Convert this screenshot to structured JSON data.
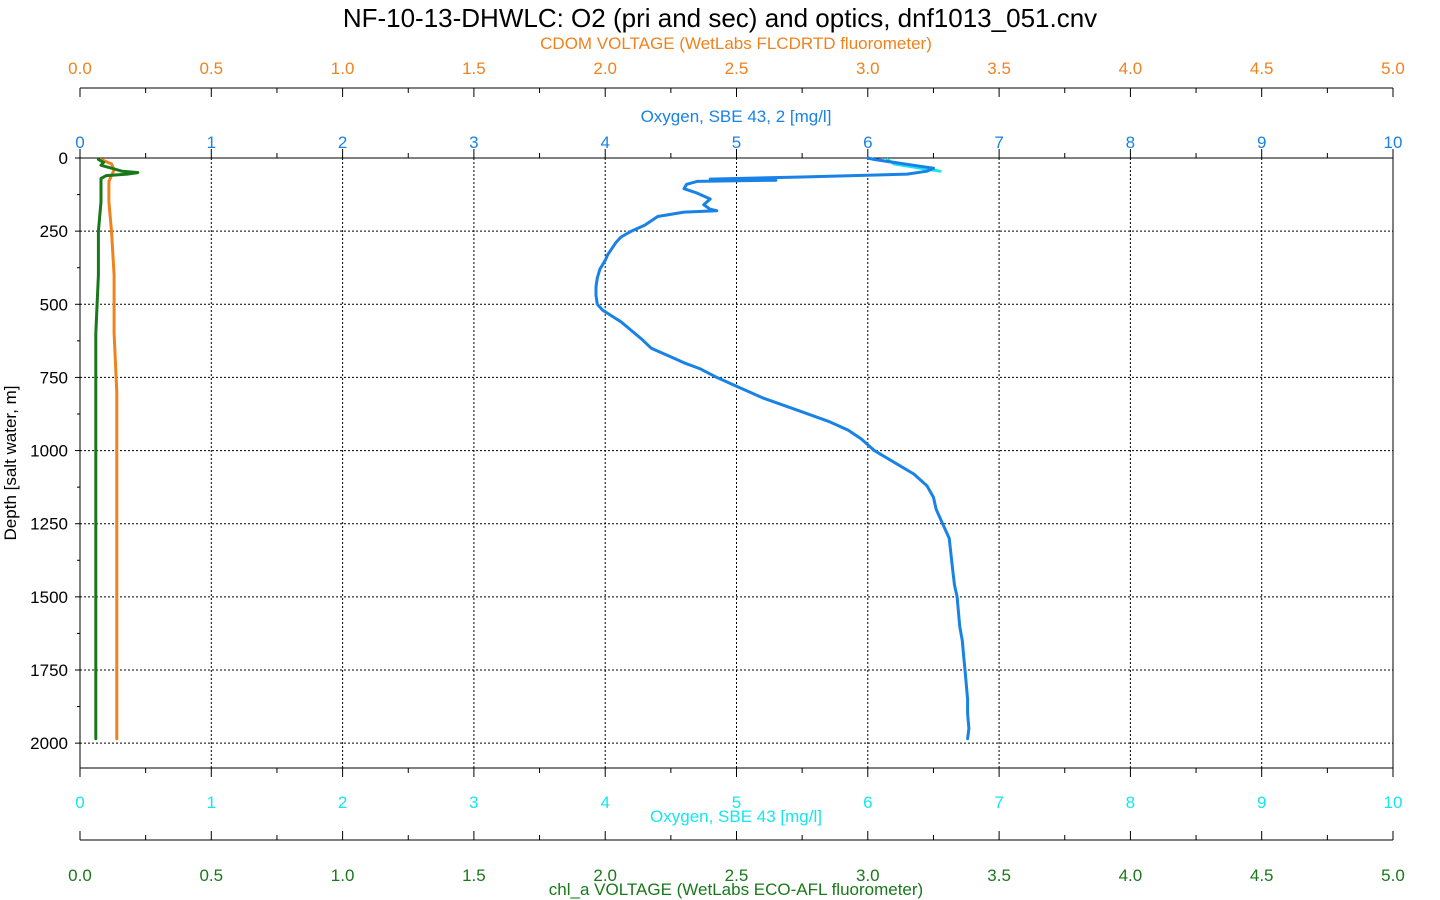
{
  "chart_data": {
    "type": "line",
    "title": "NF-10-13-DHWLC: O2 (pri and sec) and optics, dnf1013_051.cnv",
    "colors": {
      "cdom": "#f0821e",
      "oxygen2": "#1982e6",
      "oxygen": "#14e6f0",
      "chl": "#197819"
    },
    "y_axis": {
      "label": "Depth [salt water, m]",
      "range": [
        2085,
        0
      ],
      "ticks": [
        0,
        250,
        500,
        750,
        1000,
        1250,
        1500,
        1750,
        2000
      ],
      "tick_labels": [
        "0",
        "250",
        "500",
        "750",
        "1000",
        "1250",
        "1500",
        "1750",
        "2000"
      ],
      "grid": true
    },
    "x_axes": [
      {
        "id": "cdom",
        "label": "CDOM VOLTAGE (WetLabs FLCDRTD fluorometer)",
        "position": "top-outer",
        "range": [
          0,
          5
        ],
        "ticks": [
          0,
          0.5,
          1,
          1.5,
          2,
          2.5,
          3,
          3.5,
          4,
          4.5,
          5
        ],
        "tick_labels": [
          "0.0",
          "0.5",
          "1.0",
          "1.5",
          "2.0",
          "2.5",
          "3.0",
          "3.5",
          "4.0",
          "4.5",
          "5.0"
        ]
      },
      {
        "id": "oxygen2",
        "label": "Oxygen, SBE 43, 2 [mg/l]",
        "position": "top-inner",
        "range": [
          0,
          10
        ],
        "ticks": [
          0,
          1,
          2,
          3,
          4,
          5,
          6,
          7,
          8,
          9,
          10
        ],
        "tick_labels": [
          "0",
          "1",
          "2",
          "3",
          "4",
          "5",
          "6",
          "7",
          "8",
          "9",
          "10"
        ]
      },
      {
        "id": "oxygen",
        "label": "Oxygen, SBE 43 [mg/l]",
        "position": "bottom-inner",
        "range": [
          0,
          10
        ],
        "ticks": [
          0,
          1,
          2,
          3,
          4,
          5,
          6,
          7,
          8,
          9,
          10
        ],
        "tick_labels": [
          "0",
          "1",
          "2",
          "3",
          "4",
          "5",
          "6",
          "7",
          "8",
          "9",
          "10"
        ]
      },
      {
        "id": "chl",
        "label": "chl_a VOLTAGE (WetLabs ECO-AFL fluorometer)",
        "position": "bottom-outer",
        "range": [
          0,
          5
        ],
        "ticks": [
          0,
          0.5,
          1,
          1.5,
          2,
          2.5,
          3,
          3.5,
          4,
          4.5,
          5
        ],
        "tick_labels": [
          "0.0",
          "0.5",
          "1.0",
          "1.5",
          "2.0",
          "2.5",
          "3.0",
          "3.5",
          "4.0",
          "4.5",
          "5.0"
        ]
      }
    ],
    "series": [
      {
        "axis": "oxygen",
        "depth": [
          5,
          20,
          35,
          38,
          45
        ],
        "values": [
          6.15,
          6.2,
          6.4,
          6.45,
          6.55
        ]
      },
      {
        "axis": "oxygen2",
        "depth": [
          0,
          5,
          15,
          25,
          35,
          45,
          55,
          65,
          72,
          76,
          80,
          90,
          105,
          120,
          140,
          160,
          175,
          180,
          185,
          200,
          215,
          230,
          250,
          270,
          290,
          310,
          330,
          350,
          380,
          410,
          440,
          470,
          500,
          520,
          540,
          560,
          590,
          620,
          650,
          680,
          700,
          720,
          750,
          780,
          820,
          860,
          900,
          930,
          960,
          1000,
          1040,
          1080,
          1120,
          1160,
          1200,
          1250,
          1300,
          1340,
          1380,
          1420,
          1460,
          1500,
          1550,
          1600,
          1650,
          1700,
          1750,
          1800,
          1850,
          1900,
          1950,
          1985
        ],
        "values": [
          6.0,
          6.05,
          6.2,
          6.35,
          6.5,
          6.45,
          6.3,
          5.5,
          4.8,
          5.3,
          4.7,
          4.62,
          4.6,
          4.7,
          4.8,
          4.75,
          4.8,
          4.85,
          4.6,
          4.4,
          4.35,
          4.3,
          4.2,
          4.12,
          4.08,
          4.05,
          4.02,
          4.0,
          3.96,
          3.94,
          3.93,
          3.93,
          3.94,
          3.98,
          4.05,
          4.12,
          4.2,
          4.28,
          4.35,
          4.5,
          4.6,
          4.72,
          4.85,
          5.0,
          5.2,
          5.45,
          5.7,
          5.85,
          5.95,
          6.05,
          6.2,
          6.35,
          6.45,
          6.5,
          6.52,
          6.57,
          6.62,
          6.63,
          6.64,
          6.65,
          6.66,
          6.68,
          6.69,
          6.7,
          6.72,
          6.73,
          6.74,
          6.75,
          6.76,
          6.76,
          6.77,
          6.76
        ]
      },
      {
        "axis": "cdom",
        "depth": [
          5,
          20,
          40,
          60,
          80,
          100,
          150,
          250,
          400,
          600,
          800,
          1000,
          1200,
          1400,
          1600,
          1800,
          1985
        ],
        "values": [
          0.08,
          0.12,
          0.13,
          0.12,
          0.11,
          0.11,
          0.11,
          0.12,
          0.13,
          0.13,
          0.14,
          0.14,
          0.14,
          0.14,
          0.14,
          0.14,
          0.14
        ]
      },
      {
        "axis": "chl",
        "depth": [
          5,
          15,
          25,
          35,
          45,
          50,
          55,
          60,
          70,
          80,
          90,
          100,
          150,
          250,
          400,
          600,
          800,
          1000,
          1200,
          1400,
          1600,
          1800,
          1985
        ],
        "values": [
          0.07,
          0.09,
          0.08,
          0.12,
          0.16,
          0.22,
          0.18,
          0.1,
          0.08,
          0.08,
          0.08,
          0.08,
          0.08,
          0.07,
          0.07,
          0.06,
          0.06,
          0.06,
          0.06,
          0.06,
          0.06,
          0.06,
          0.06
        ]
      }
    ]
  }
}
